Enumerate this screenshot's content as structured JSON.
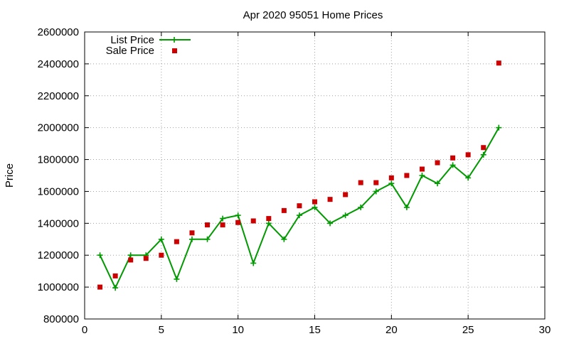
{
  "chart_data": {
    "type": "line",
    "title": "Apr 2020 95051 Home Prices",
    "xlabel": "",
    "ylabel": "Price",
    "xlim": [
      0,
      30
    ],
    "ylim": [
      800000,
      2600000
    ],
    "xticks": [
      0,
      5,
      10,
      15,
      20,
      25,
      30
    ],
    "yticks": [
      800000,
      1000000,
      1200000,
      1400000,
      1600000,
      1800000,
      2000000,
      2200000,
      2400000,
      2600000
    ],
    "xtick_labels": [
      "0",
      "5",
      "10",
      "15",
      "20",
      "25",
      "30"
    ],
    "ytick_labels": [
      "800000",
      "1000000",
      "1200000",
      "1400000",
      "1600000",
      "1800000",
      "2000000",
      "2200000",
      "2400000",
      "2600000"
    ],
    "grid": true,
    "legend_position": "top-left",
    "x": [
      1,
      2,
      3,
      4,
      5,
      6,
      7,
      8,
      9,
      10,
      11,
      12,
      13,
      14,
      15,
      16,
      17,
      18,
      19,
      20,
      21,
      22,
      23,
      24,
      25,
      26,
      27
    ],
    "series": [
      {
        "name": "List Price",
        "style": "line-with-plus-markers",
        "color": "#009900",
        "values": [
          1200000,
          995000,
          1200000,
          1200000,
          1300000,
          1050000,
          1300000,
          1300000,
          1430000,
          1450000,
          1150000,
          1400000,
          1300000,
          1450000,
          1500000,
          1400000,
          1450000,
          1500000,
          1600000,
          1650000,
          1500000,
          1700000,
          1650000,
          1765000,
          1685000,
          1830000,
          2000000
        ]
      },
      {
        "name": "Sale Price",
        "style": "square-markers",
        "color": "#cc0000",
        "values": [
          1000000,
          1070000,
          1170000,
          1180000,
          1200000,
          1285000,
          1340000,
          1390000,
          1390000,
          1405000,
          1415000,
          1430000,
          1480000,
          1510000,
          1535000,
          1550000,
          1580000,
          1655000,
          1655000,
          1685000,
          1700000,
          1740000,
          1780000,
          1810000,
          1830000,
          1875000,
          2405000
        ]
      }
    ]
  }
}
